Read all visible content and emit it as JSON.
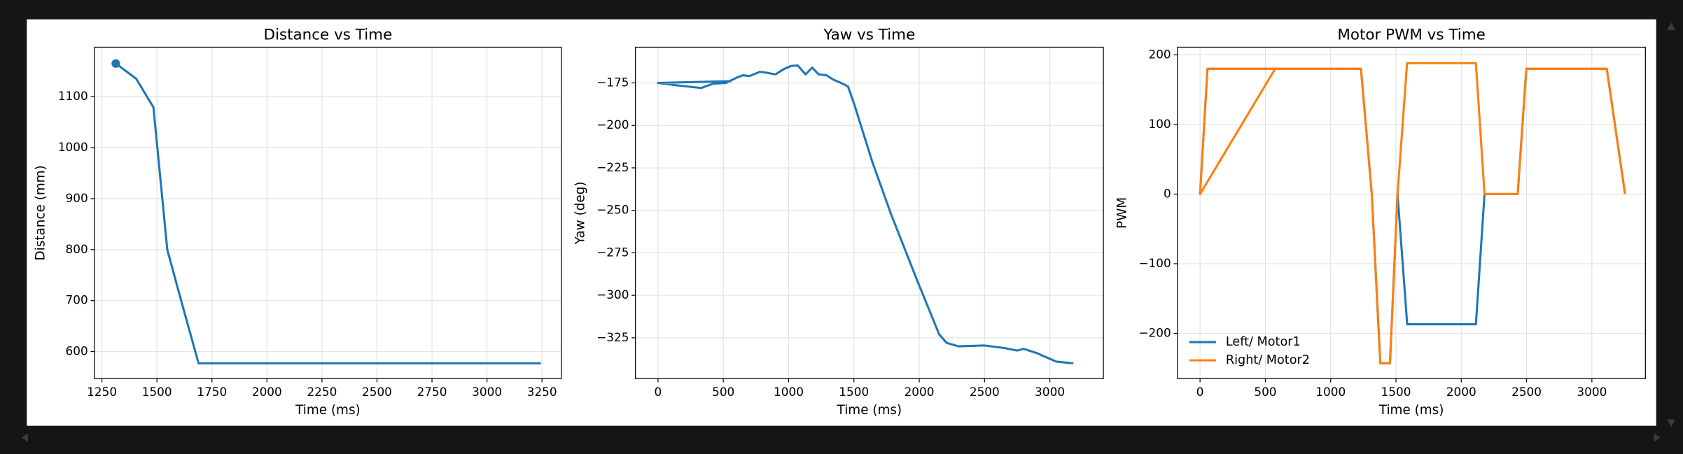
{
  "chart_data": [
    {
      "type": "line",
      "title": "Distance vs Time",
      "x_label": "Time (ms)",
      "y_label": "Distance (mm)",
      "xlim": [
        1216,
        3338
      ],
      "ylim": [
        547,
        1197
      ],
      "xticks": [
        1250,
        1500,
        1750,
        2000,
        2250,
        2500,
        2750,
        3000,
        3250
      ],
      "yticks": [
        600,
        700,
        800,
        900,
        1000,
        1100
      ],
      "grid": true,
      "start_marker": true,
      "series": [
        {
          "color": "#1f77b4",
          "x": [
            1313,
            1406,
            1484,
            1547,
            1610,
            1689,
            3245
          ],
          "values": [
            1165,
            1135,
            1079,
            800,
            700,
            577,
            577
          ]
        }
      ]
    },
    {
      "type": "line",
      "title": "Yaw vs Time",
      "x_label": "Time (ms)",
      "y_label": "Yaw (deg)",
      "xlim": [
        -173,
        3410
      ],
      "ylim": [
        -349,
        -154
      ],
      "xticks": [
        0,
        500,
        1000,
        1500,
        2000,
        2500,
        3000
      ],
      "yticks": [
        {
          "value": -325,
          "label": "−325"
        },
        {
          "value": -300,
          "label": "−300"
        },
        {
          "value": -275,
          "label": "−275"
        },
        {
          "value": -250,
          "label": "−250"
        },
        {
          "value": -225,
          "label": "−225"
        },
        {
          "value": -200,
          "label": "−200"
        },
        {
          "value": -175,
          "label": "−175"
        }
      ],
      "grid": true,
      "series": [
        {
          "color": "#1f77b4",
          "x": [
            560,
            0,
            150,
            330,
            420,
            520,
            600,
            650,
            700,
            780,
            830,
            900,
            960,
            1020,
            1070,
            1130,
            1180,
            1230,
            1290,
            1340,
            1400,
            1454,
            1500,
            1643,
            1783,
            1988,
            2153,
            2210,
            2300,
            2500,
            2650,
            2750,
            2800,
            2900,
            3050,
            3180
          ],
          "values": [
            -174,
            -175,
            -176.5,
            -178,
            -175.5,
            -175,
            -172,
            -170.5,
            -171,
            -168.5,
            -169,
            -170,
            -167,
            -165,
            -164.8,
            -170,
            -166,
            -170,
            -170.5,
            -173,
            -175,
            -177,
            -187,
            -222,
            -252,
            -292,
            -323,
            -328,
            -330,
            -329.5,
            -331,
            -332.5,
            -331.5,
            -334,
            -339,
            -340
          ]
        }
      ]
    },
    {
      "type": "line",
      "title": "Motor PWM vs Time",
      "x_label": "Time (ms)",
      "y_label": "PWM",
      "xlim": [
        -173,
        3410
      ],
      "ylim": [
        -265,
        211
      ],
      "xticks": [
        0,
        500,
        1000,
        1500,
        2000,
        2500,
        3000
      ],
      "yticks": [
        {
          "value": -200,
          "label": "−200"
        },
        {
          "value": -100,
          "label": "−100"
        },
        0,
        100,
        200
      ],
      "grid": true,
      "legend": "lower left",
      "series": [
        {
          "name": "Left/ Motor1",
          "color": "#1f77b4",
          "x": [
            0,
            57,
            1232,
            1315,
            1380,
            1454,
            1512,
            1586,
            2112,
            2178,
            2432,
            2498,
            3114,
            3254
          ],
          "values": [
            0,
            180,
            180,
            0,
            -243,
            -243,
            0,
            -187,
            -187,
            0,
            0,
            180,
            180,
            0
          ]
        },
        {
          "name": "Right/ Motor2",
          "color": "#ff7f0e",
          "x": [
            0,
            575,
            0,
            57,
            1232,
            1315,
            1380,
            1454,
            1512,
            1585,
            2112,
            2178,
            2432,
            2498,
            3114,
            3254
          ],
          "values": [
            0,
            180,
            0,
            180,
            180,
            0,
            -243,
            -243,
            0,
            188,
            188,
            0,
            0,
            180,
            180,
            0
          ]
        }
      ]
    }
  ]
}
